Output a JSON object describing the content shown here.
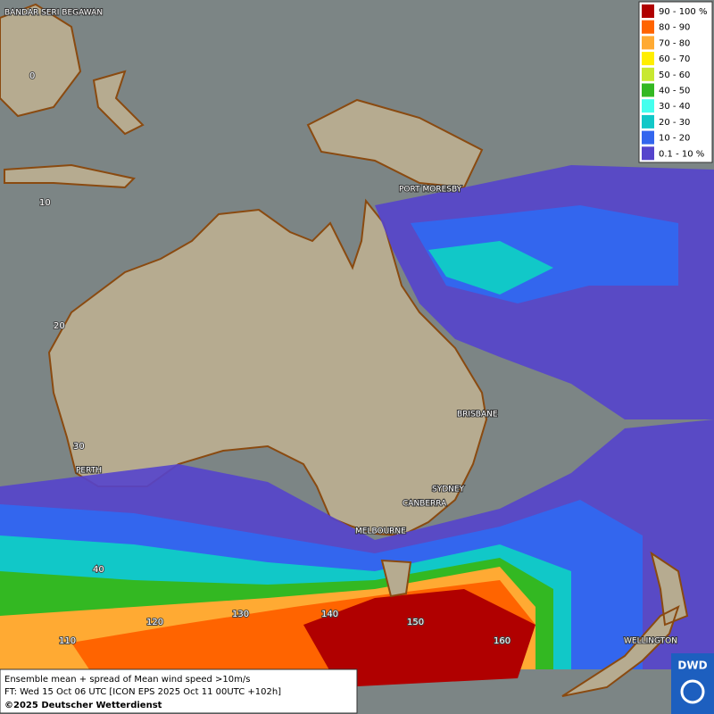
{
  "map": {
    "places": [
      {
        "text": "BANDAR SERI BEGAWAN"
      },
      {
        "text": "PORT MORESBY"
      },
      {
        "text": "BRISBANE"
      },
      {
        "text": "PERTH"
      },
      {
        "text": "SYDNEY"
      },
      {
        "text": "CANBERRA"
      },
      {
        "text": "MELBOURNE"
      },
      {
        "text": "WELLINGTON"
      }
    ],
    "latitude_labels": [
      "0",
      "10",
      "20",
      "30",
      "40"
    ],
    "longitude_labels": [
      "110",
      "120",
      "130",
      "140",
      "150",
      "160"
    ],
    "legend": [
      {
        "label": "90 - 100 %",
        "color": "#b00000"
      },
      {
        "label": "80 - 90",
        "color": "#ff6400"
      },
      {
        "label": "70 - 80",
        "color": "#ffaa33"
      },
      {
        "label": "60 - 70",
        "color": "#ffee00"
      },
      {
        "label": "50 - 60",
        "color": "#c8e830"
      },
      {
        "label": "40 - 50",
        "color": "#33b822"
      },
      {
        "label": "30 - 40",
        "color": "#44ffee"
      },
      {
        "label": "20 - 30",
        "color": "#11c8c8"
      },
      {
        "label": "10 - 20",
        "color": "#3366ee"
      },
      {
        "label": "0.1 - 10 %",
        "color": "#5544cc"
      }
    ],
    "caption": [
      "Ensemble mean + spread of Mean wind speed >10m/s",
      "FT: Wed 15 Oct 06 UTC [ICON EPS 2025 Oct 11 00UTC +102h]",
      "©2025 Deutscher Wetterdienst"
    ],
    "logo": "DWD"
  }
}
